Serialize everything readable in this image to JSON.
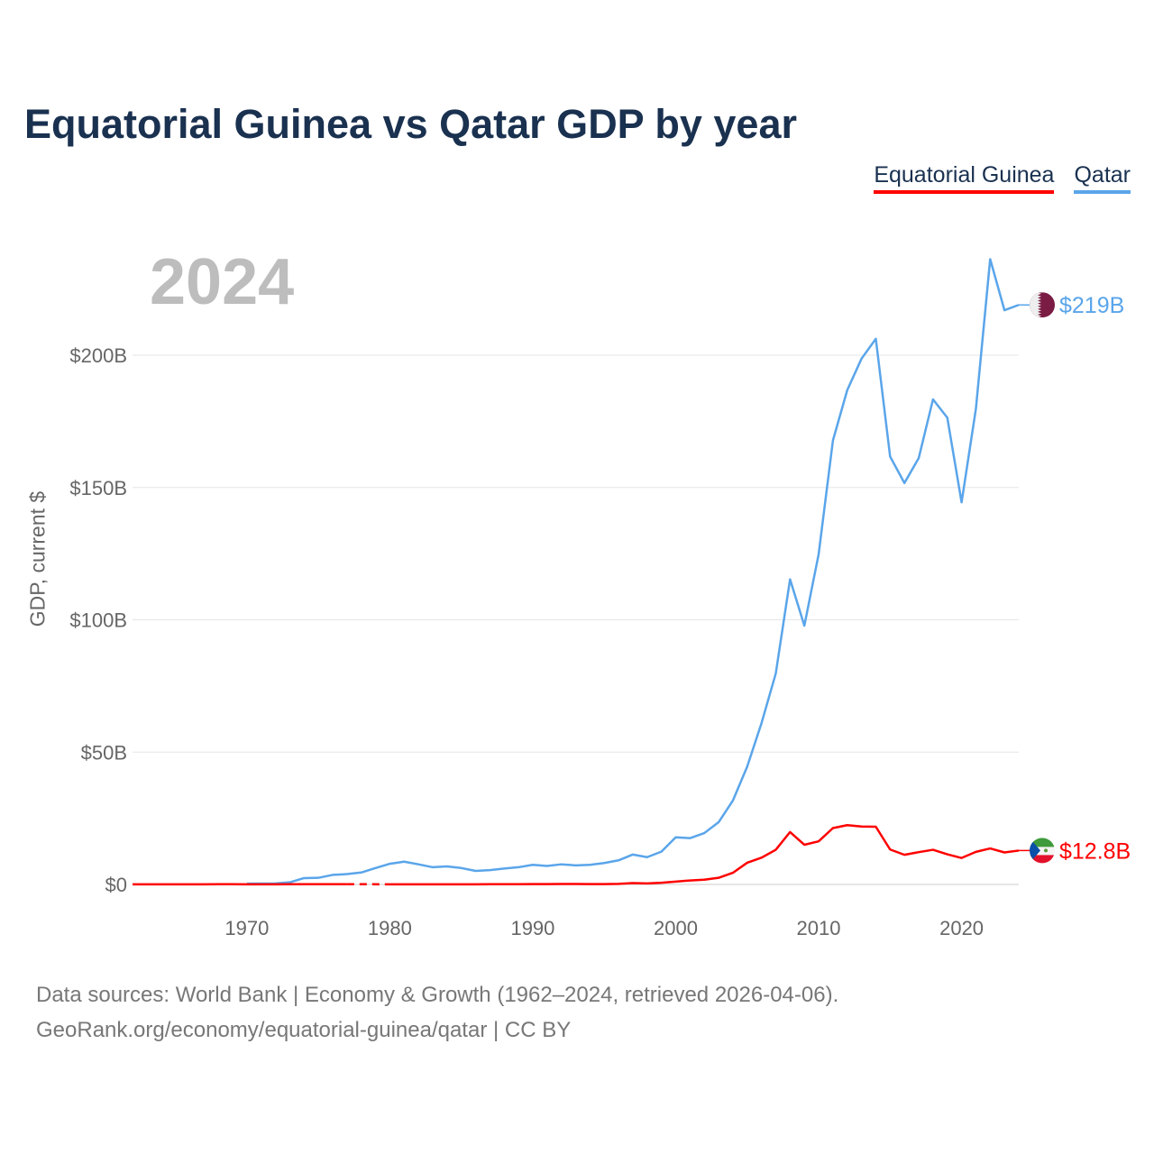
{
  "title": "Equatorial Guinea vs Qatar GDP by year",
  "year_label": "2024",
  "footer": {
    "line1": "Data sources: World Bank | Economy & Growth (1962–2024, retrieved 2026-04-06).",
    "line2": "GeoRank.org/economy/equatorial-guinea/qatar | CC BY"
  },
  "chart_data": {
    "type": "line",
    "title": "Equatorial Guinea vs Qatar GDP by year",
    "xlabel": "",
    "ylabel": "GDP, current $",
    "xlim": [
      1962,
      2024
    ],
    "ylim": [
      0,
      236
    ],
    "x_ticks": [
      1970,
      1980,
      1990,
      2000,
      2010,
      2020
    ],
    "y_ticks": [
      {
        "v": 0,
        "label": "$0"
      },
      {
        "v": 50,
        "label": "$50B"
      },
      {
        "v": 100,
        "label": "$100B"
      },
      {
        "v": 150,
        "label": "$150B"
      },
      {
        "v": 200,
        "label": "$200B"
      }
    ],
    "grid": true,
    "legend": "top-right",
    "series": [
      {
        "name": "Equatorial Guinea",
        "color": "#ff0000",
        "end_label": "$12.8B",
        "flag": "equatorial-guinea-flag",
        "start": 1962,
        "values": [
          0.05,
          0.05,
          0.05,
          0.06,
          0.06,
          0.06,
          0.07,
          0.07,
          0.06,
          0.06,
          0.06,
          0.07,
          0.08,
          0.1,
          0.1,
          0.1,
          null,
          null,
          0.05,
          0.05,
          0.05,
          0.05,
          0.05,
          0.05,
          0.06,
          0.07,
          0.08,
          0.08,
          0.13,
          0.13,
          0.15,
          0.15,
          0.13,
          0.14,
          0.23,
          0.5,
          0.37,
          0.62,
          1.05,
          1.5,
          1.8,
          2.5,
          4.4,
          8.2,
          10.1,
          13.1,
          19.8,
          15.0,
          16.3,
          21.3,
          22.4,
          21.9,
          21.8,
          13.2,
          11.2,
          12.2,
          13.1,
          11.4,
          10.0,
          12.3,
          13.6,
          12.1,
          12.8
        ]
      },
      {
        "name": "Qatar",
        "color": "#5aa5ea",
        "end_label": "$219B",
        "flag": "qatar-flag",
        "start": 1970,
        "values": [
          0.3,
          0.35,
          0.4,
          0.8,
          2.4,
          2.5,
          3.6,
          3.9,
          4.5,
          6.2,
          7.8,
          8.6,
          7.6,
          6.5,
          6.8,
          6.2,
          5.1,
          5.4,
          6.0,
          6.5,
          7.4,
          7.0,
          7.6,
          7.2,
          7.4,
          8.1,
          9.1,
          11.3,
          10.3,
          12.4,
          17.8,
          17.5,
          19.4,
          23.5,
          31.7,
          44.5,
          60.9,
          79.7,
          115.3,
          97.8,
          124.8,
          167.8,
          186.8,
          198.7,
          206.2,
          161.7,
          151.7,
          161.1,
          183.3,
          176.4,
          144.4,
          179.7,
          236.3,
          217,
          219
        ]
      }
    ]
  }
}
